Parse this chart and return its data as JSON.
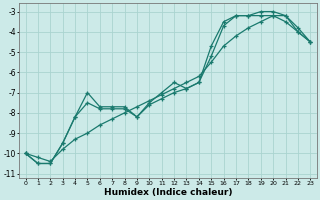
{
  "xlabel": "Humidex (Indice chaleur)",
  "bg_color": "#cceae8",
  "grid_color": "#aad4d0",
  "line_color": "#1a7a6e",
  "xlim": [
    -0.5,
    23.5
  ],
  "ylim": [
    -11.2,
    -2.6
  ],
  "xticks": [
    0,
    1,
    2,
    3,
    4,
    5,
    6,
    7,
    8,
    9,
    10,
    11,
    12,
    13,
    14,
    15,
    16,
    17,
    18,
    19,
    20,
    21,
    22,
    23
  ],
  "yticks": [
    -11,
    -10,
    -9,
    -8,
    -7,
    -6,
    -5,
    -4,
    -3
  ],
  "line1_x": [
    0,
    1,
    2,
    3,
    4,
    5,
    6,
    7,
    8,
    9,
    10,
    11,
    12,
    13,
    14,
    15,
    16,
    17,
    18,
    19,
    20,
    21,
    22,
    23
  ],
  "line1_y": [
    -10.0,
    -10.5,
    -10.5,
    -9.5,
    -8.2,
    -7.0,
    -7.7,
    -7.7,
    -7.7,
    -8.2,
    -7.5,
    -7.0,
    -6.5,
    -6.8,
    -6.5,
    -4.7,
    -3.5,
    -3.2,
    -3.2,
    -3.2,
    -3.2,
    -3.5,
    -4.0,
    -4.5
  ],
  "line2_x": [
    0,
    1,
    2,
    3,
    4,
    5,
    6,
    7,
    8,
    9,
    10,
    11,
    12,
    13,
    14,
    15,
    16,
    17,
    18,
    19,
    20,
    21,
    22,
    23
  ],
  "line2_y": [
    -10.0,
    -10.5,
    -10.5,
    -9.5,
    -8.2,
    -7.5,
    -7.8,
    -7.8,
    -7.8,
    -8.2,
    -7.6,
    -7.3,
    -7.0,
    -6.8,
    -6.5,
    -5.2,
    -3.7,
    -3.2,
    -3.2,
    -3.0,
    -3.0,
    -3.2,
    -3.8,
    -4.5
  ],
  "line3_x": [
    0,
    1,
    2,
    3,
    4,
    5,
    6,
    7,
    8,
    9,
    10,
    11,
    12,
    13,
    14,
    15,
    16,
    17,
    18,
    19,
    20,
    21,
    22,
    23
  ],
  "line3_y": [
    -10.0,
    -10.2,
    -10.4,
    -9.8,
    -9.3,
    -9.0,
    -8.6,
    -8.3,
    -8.0,
    -7.7,
    -7.4,
    -7.1,
    -6.8,
    -6.5,
    -6.2,
    -5.5,
    -4.7,
    -4.2,
    -3.8,
    -3.5,
    -3.2,
    -3.2,
    -4.0,
    -4.5
  ]
}
